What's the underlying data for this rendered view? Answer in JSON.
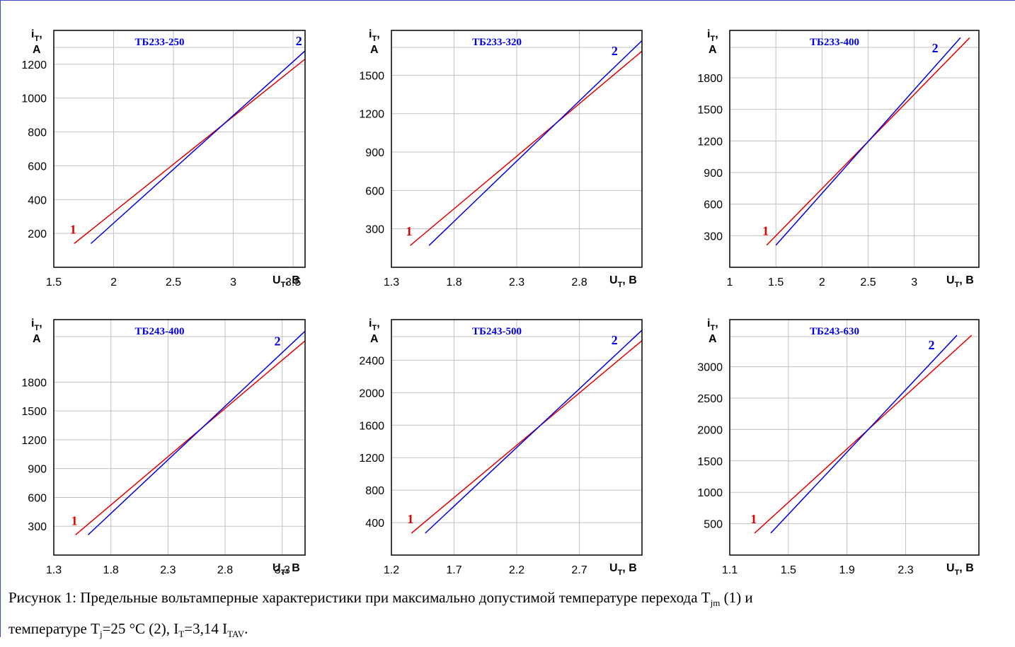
{
  "colors": {
    "series1": "#e00000",
    "series2": "#0000e0",
    "grid": "#c0c0c0",
    "title": "#0000e0"
  },
  "chart_data": [
    {
      "type": "line",
      "title": "ТБ233-250",
      "ylabel_top": "i",
      "ylabel_sub": "T",
      "ylabel_comma": ",",
      "yunit": "A",
      "xlabel_main": "U",
      "xlabel_sub": "T",
      "xlabel_unit": ", B",
      "xlim": [
        1.5,
        3.6
      ],
      "ylim": [
        0,
        1400
      ],
      "xticks": [
        1.5,
        2,
        2.5,
        3,
        3.5
      ],
      "xtick_labels": [
        "1.5",
        "2",
        "2.5",
        "3",
        "3.5"
      ],
      "yticks": [
        200,
        400,
        600,
        800,
        1000,
        1200
      ],
      "ytick_labels": [
        "200",
        "400",
        "600",
        "800",
        "1000",
        "1200"
      ],
      "series": [
        {
          "name": "1",
          "x": [
            1.67,
            3.9
          ],
          "y": [
            140,
            1400
          ]
        },
        {
          "name": "2",
          "x": [
            1.81,
            3.79
          ],
          "y": [
            140,
            1400
          ]
        }
      ]
    },
    {
      "type": "line",
      "title": "ТБ233-320",
      "ylabel_top": "i",
      "ylabel_sub": "T",
      "ylabel_comma": ",",
      "yunit": "A",
      "xlabel_main": "U",
      "xlabel_sub": "T",
      "xlabel_unit": ", B",
      "xlim": [
        1.3,
        3.3
      ],
      "ylim": [
        0,
        1850
      ],
      "xticks": [
        1.3,
        1.8,
        2.3,
        2.8
      ],
      "xtick_labels": [
        "1.3",
        "1.8",
        "2.3",
        "2.8"
      ],
      "yticks": [
        300,
        600,
        900,
        1200,
        1500
      ],
      "ytick_labels": [
        "300",
        "600",
        "900",
        "1200",
        "1500"
      ],
      "series": [
        {
          "name": "1",
          "x": [
            1.45,
            3.4
          ],
          "y": [
            170,
            1770
          ]
        },
        {
          "name": "2",
          "x": [
            1.6,
            3.3
          ],
          "y": [
            170,
            1770
          ]
        }
      ]
    },
    {
      "type": "line",
      "title": "ТБ233-400",
      "ylabel_top": "i",
      "ylabel_sub": "T",
      "ylabel_comma": ",",
      "yunit": "A",
      "xlabel_main": "U",
      "xlabel_sub": "T",
      "xlabel_unit": ", B",
      "xlim": [
        1.0,
        3.7
      ],
      "ylim": [
        0,
        2250
      ],
      "xticks": [
        1,
        1.5,
        2,
        2.5,
        3
      ],
      "xtick_labels": [
        "1",
        "1.5",
        "2",
        "2.5",
        "3"
      ],
      "yticks": [
        300,
        600,
        900,
        1200,
        1500,
        1800
      ],
      "ytick_labels": [
        "300",
        "600",
        "900",
        "1200",
        "1500",
        "1800"
      ],
      "series": [
        {
          "name": "1",
          "x": [
            1.4,
            3.6
          ],
          "y": [
            210,
            2180
          ]
        },
        {
          "name": "2",
          "x": [
            1.5,
            3.5
          ],
          "y": [
            210,
            2180
          ]
        }
      ]
    },
    {
      "type": "line",
      "title": "ТБ243-400",
      "ylabel_top": "i",
      "ylabel_sub": "T",
      "ylabel_comma": ",",
      "yunit": "A",
      "xlabel_main": "U",
      "xlabel_sub": "T",
      "xlabel_unit": ", B",
      "xlim": [
        1.3,
        3.5
      ],
      "ylim": [
        0,
        2450
      ],
      "xticks": [
        1.3,
        1.8,
        2.3,
        2.8,
        3.3
      ],
      "xtick_labels": [
        "1.3",
        "1.8",
        "2.3",
        "2.8",
        "3.3"
      ],
      "yticks": [
        300,
        600,
        900,
        1200,
        1500,
        1800
      ],
      "ytick_labels": [
        "300",
        "600",
        "900",
        "1200",
        "1500",
        "1800"
      ],
      "series": [
        {
          "name": "1",
          "x": [
            1.49,
            3.6
          ],
          "y": [
            210,
            2330
          ]
        },
        {
          "name": "2",
          "x": [
            1.6,
            3.5
          ],
          "y": [
            210,
            2330
          ]
        }
      ]
    },
    {
      "type": "line",
      "title": "ТБ243-500",
      "ylabel_top": "i",
      "ylabel_sub": "T",
      "ylabel_comma": ",",
      "yunit": "A",
      "xlabel_main": "U",
      "xlabel_sub": "T",
      "xlabel_unit": ", B",
      "xlim": [
        1.2,
        3.2
      ],
      "ylim": [
        0,
        2900
      ],
      "xticks": [
        1.2,
        1.7,
        2.2,
        2.7
      ],
      "xtick_labels": [
        "1.2",
        "1.7",
        "2.2",
        "2.7"
      ],
      "yticks": [
        400,
        800,
        1200,
        1600,
        2000,
        2400
      ],
      "ytick_labels": [
        "400",
        "800",
        "1200",
        "1600",
        "2000",
        "2400"
      ],
      "series": [
        {
          "name": "1",
          "x": [
            1.36,
            3.3
          ],
          "y": [
            270,
            2770
          ]
        },
        {
          "name": "2",
          "x": [
            1.47,
            3.2
          ],
          "y": [
            270,
            2770
          ]
        }
      ]
    },
    {
      "type": "line",
      "title": "ТБ243-630",
      "ylabel_top": "i",
      "ylabel_sub": "T",
      "ylabel_comma": ",",
      "yunit": "A",
      "xlabel_main": "U",
      "xlabel_sub": "T",
      "xlabel_unit": ", B",
      "xlim": [
        1.1,
        2.8
      ],
      "ylim": [
        0,
        3750
      ],
      "xticks": [
        1.1,
        1.5,
        1.9,
        2.3
      ],
      "xtick_labels": [
        "1.1",
        "1.5",
        "1.9",
        "2.3"
      ],
      "yticks": [
        500,
        1000,
        1500,
        2000,
        2500,
        3000
      ],
      "ytick_labels": [
        "500",
        "1000",
        "1500",
        "2000",
        "2500",
        "3000"
      ],
      "series": [
        {
          "name": "1",
          "x": [
            1.27,
            2.75
          ],
          "y": [
            350,
            3500
          ]
        },
        {
          "name": "2",
          "x": [
            1.38,
            2.65
          ],
          "y": [
            350,
            3500
          ]
        }
      ]
    }
  ],
  "caption": {
    "line1": "Рисунок 1: Предельные вольтамперные характеристики при максимально допустимой температуре перехода T",
    "line1_sub": "jm",
    "line1_end": " (1) и",
    "line2_a": "температуре T",
    "line2_sub_j": "j",
    "line2_b": "=25 °C (2), I",
    "line2_sub_t": "T",
    "line2_c": "=3,14 I",
    "line2_sub_tav": "TAV",
    "line2_end": "."
  }
}
